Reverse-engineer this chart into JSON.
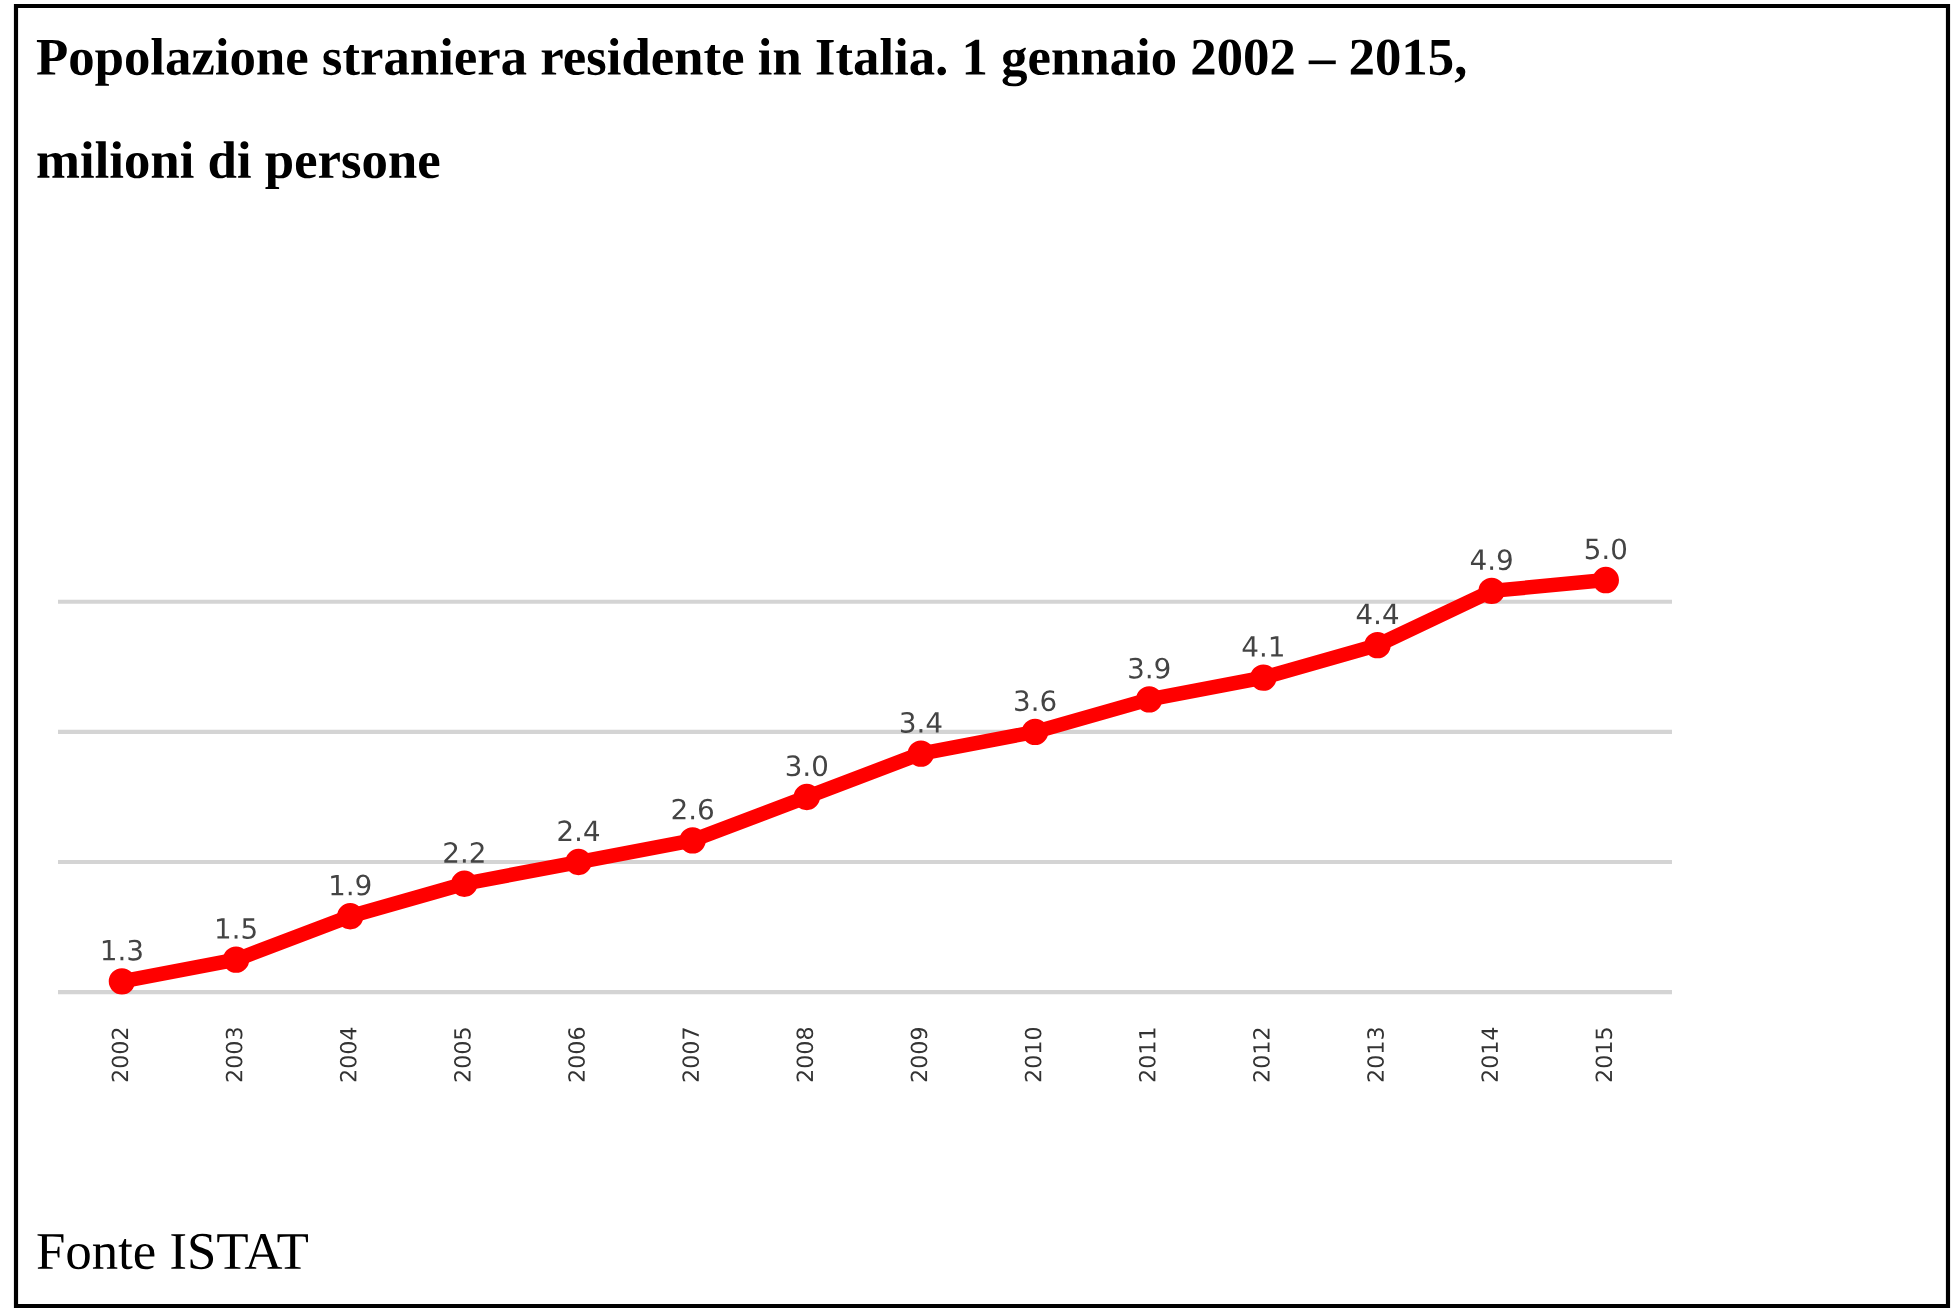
{
  "chart_data": {
    "type": "line",
    "title": "Popolazione straniera residente in Italia. 1 gennaio 2002 – 2015, milioni di persone",
    "categories": [
      "2002",
      "2003",
      "2004",
      "2005",
      "2006",
      "2007",
      "2008",
      "2009",
      "2010",
      "2011",
      "2012",
      "2013",
      "2014",
      "2015"
    ],
    "series": [
      {
        "color": "#ff0000",
        "values": [
          1.3,
          1.5,
          1.9,
          2.2,
          2.4,
          2.6,
          3.0,
          3.4,
          3.6,
          3.9,
          4.1,
          4.4,
          4.9,
          5.0
        ],
        "value_labels": [
          "1.3",
          "1.5",
          "1.9",
          "2.2",
          "2.4",
          "2.6",
          "3.0",
          "3.4",
          "3.6",
          "3.9",
          "4.1",
          "4.4",
          "4.9",
          "5.0"
        ]
      }
    ],
    "yticks": [
      {
        "value": 1.2,
        "label": null
      },
      {
        "value": 2.4,
        "label": null
      },
      {
        "value": 3.6,
        "label": null
      },
      {
        "value": 4.8,
        "label": null
      }
    ],
    "grid": "y",
    "tick_labels": "x",
    "marker": "circle",
    "line_style": "solid",
    "annotations": [
      "Fonte ISTAT"
    ]
  }
}
